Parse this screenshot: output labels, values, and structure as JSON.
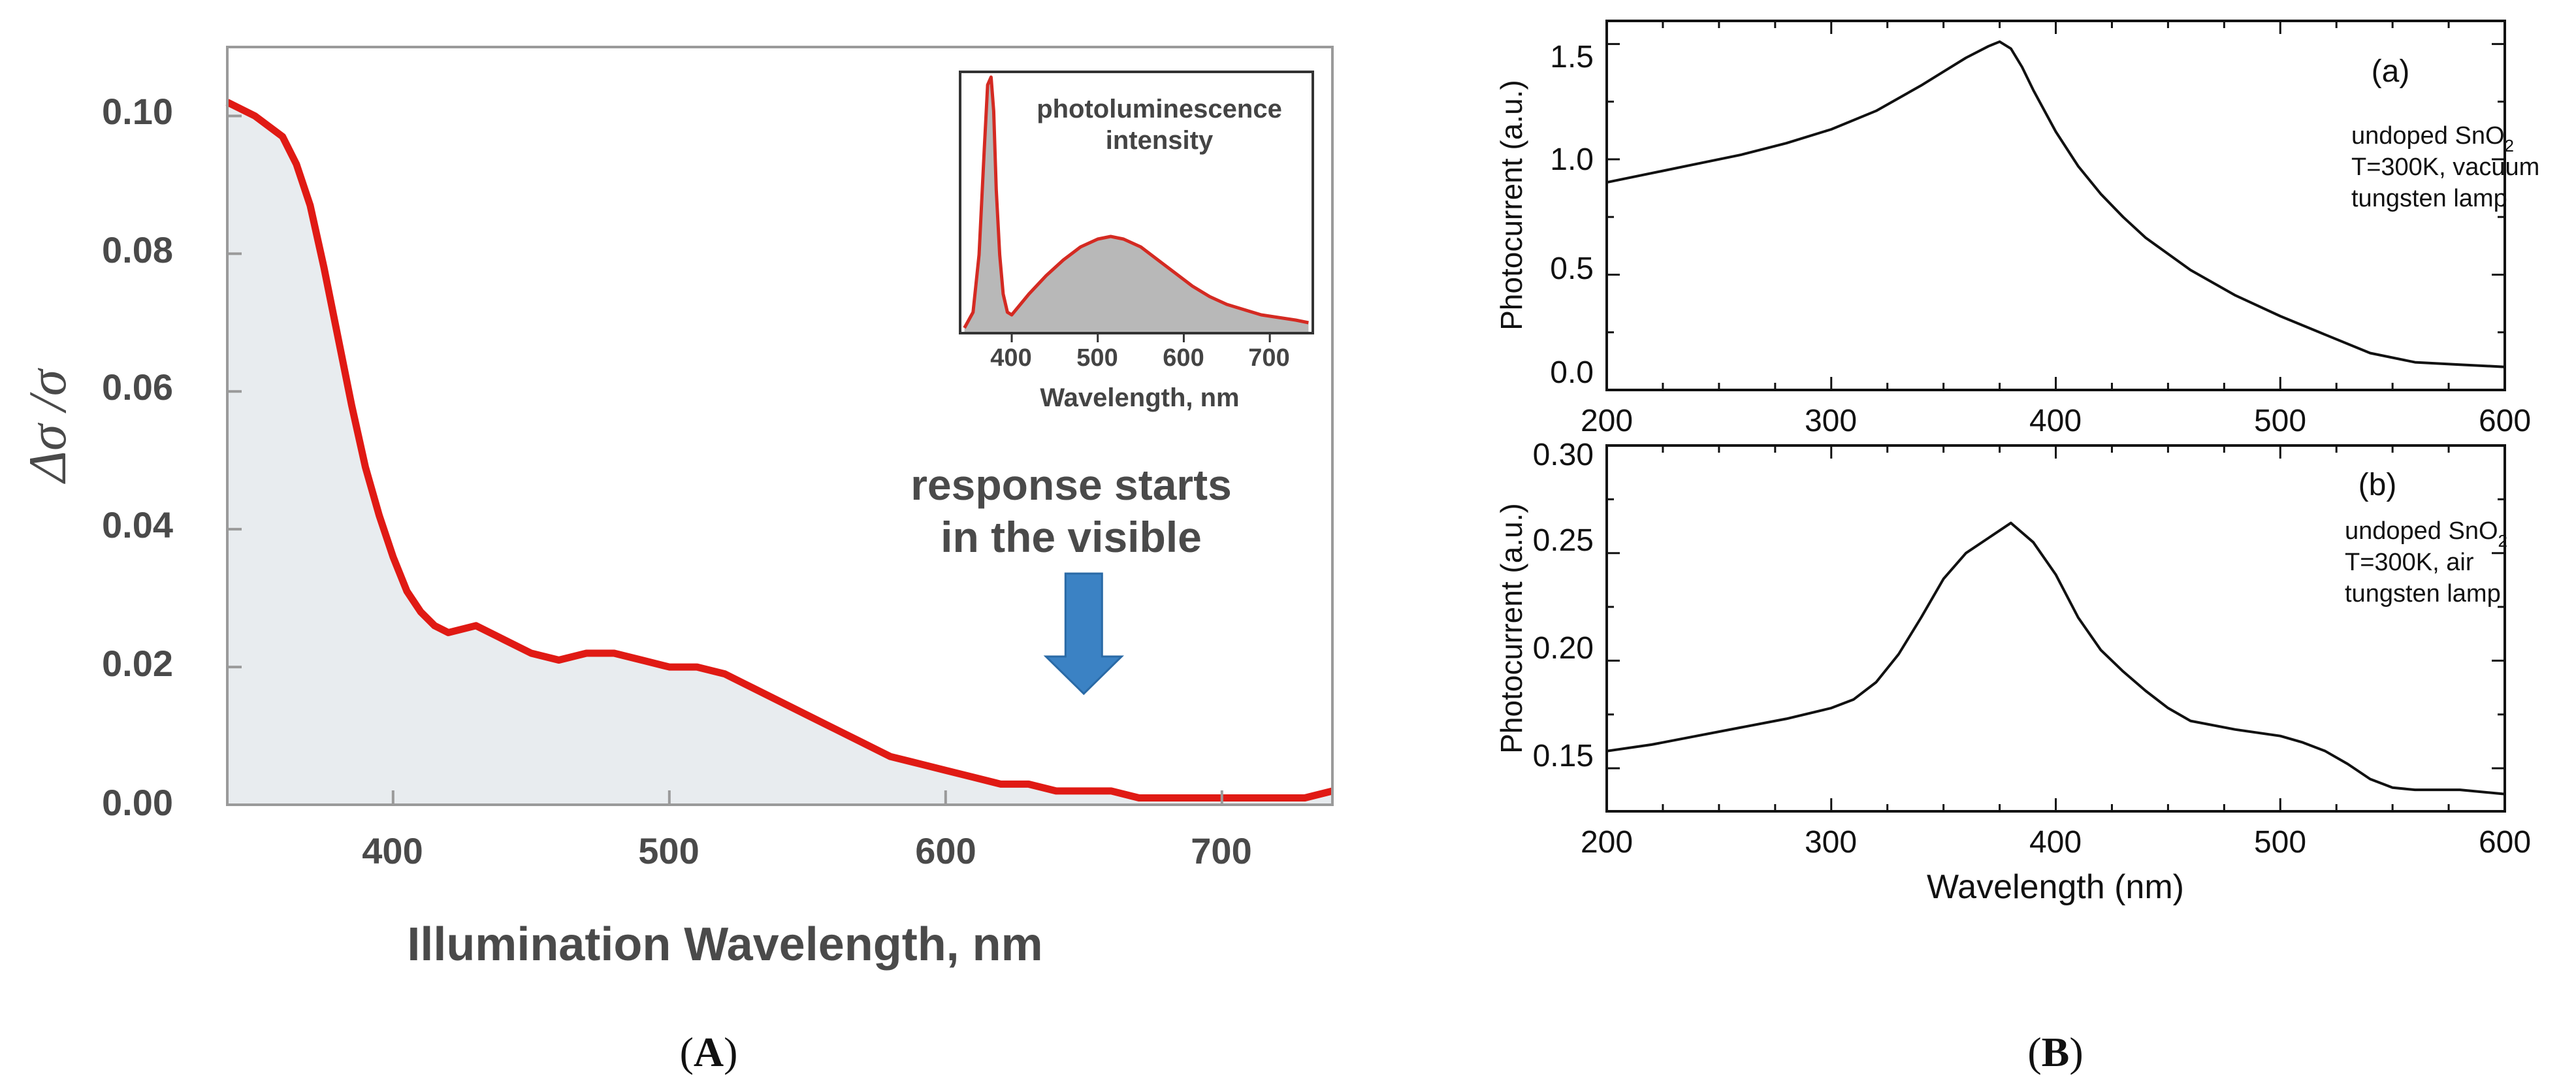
{
  "panels": [
    {
      "label_open": "(",
      "label": "A",
      "label_close": ")"
    },
    {
      "label_open": "(",
      "label": "B",
      "label_close": ")"
    }
  ],
  "chart_data": [
    {
      "id": "A-main",
      "type": "area",
      "xlabel": "Illumination Wavelength, nm",
      "ylabel": "Δσ /σ",
      "xlim": [
        340,
        740
      ],
      "ylim": [
        0,
        0.11
      ],
      "xticks": [
        400,
        500,
        600,
        700
      ],
      "xtick_labels": [
        "400",
        "500",
        "600",
        "700"
      ],
      "yticks": [
        0,
        0.02,
        0.04,
        0.06,
        0.08,
        0.1
      ],
      "ytick_labels": [
        "0.00",
        "0.02",
        "0.04",
        "0.06",
        "0.08",
        "0.10"
      ],
      "line_color": "#e01a14",
      "fill_color": "#e8ecef",
      "x": [
        340,
        350,
        360,
        365,
        370,
        375,
        380,
        385,
        390,
        395,
        400,
        405,
        410,
        415,
        420,
        430,
        440,
        450,
        460,
        470,
        480,
        490,
        500,
        510,
        520,
        530,
        540,
        550,
        560,
        570,
        580,
        590,
        600,
        610,
        620,
        630,
        640,
        650,
        660,
        670,
        680,
        690,
        700,
        710,
        720,
        730,
        740
      ],
      "y": [
        0.102,
        0.1,
        0.097,
        0.093,
        0.087,
        0.078,
        0.068,
        0.058,
        0.049,
        0.042,
        0.036,
        0.031,
        0.028,
        0.026,
        0.025,
        0.026,
        0.024,
        0.022,
        0.021,
        0.022,
        0.022,
        0.021,
        0.02,
        0.02,
        0.019,
        0.017,
        0.015,
        0.013,
        0.011,
        0.009,
        0.007,
        0.006,
        0.005,
        0.004,
        0.003,
        0.003,
        0.002,
        0.002,
        0.002,
        0.001,
        0.001,
        0.001,
        0.001,
        0.001,
        0.001,
        0.001,
        0.002
      ],
      "annotation": {
        "line1": "response starts",
        "line2": "in the visible",
        "arrow_x": 650,
        "arrow_color": "#3b82c4"
      }
    },
    {
      "id": "A-inset",
      "type": "area",
      "title_line1": "photoluminescence",
      "title_line2": "intensity",
      "xlabel": "Wavelength, nm",
      "xlim": [
        340,
        750
      ],
      "ylim": [
        0,
        1
      ],
      "xticks": [
        400,
        500,
        600,
        700
      ],
      "xtick_labels": [
        "400",
        "500",
        "600",
        "700"
      ],
      "line_color": "#d42a22",
      "fill_color": "#b8b8b8",
      "x": [
        345,
        355,
        362,
        368,
        372,
        376,
        379,
        382,
        386,
        390,
        395,
        400,
        410,
        420,
        440,
        460,
        480,
        500,
        515,
        530,
        550,
        570,
        590,
        610,
        630,
        650,
        670,
        690,
        710,
        730,
        745
      ],
      "y": [
        0.02,
        0.08,
        0.3,
        0.7,
        0.95,
        0.98,
        0.85,
        0.55,
        0.3,
        0.15,
        0.08,
        0.07,
        0.11,
        0.15,
        0.22,
        0.28,
        0.33,
        0.36,
        0.37,
        0.36,
        0.33,
        0.28,
        0.23,
        0.18,
        0.14,
        0.11,
        0.09,
        0.07,
        0.06,
        0.05,
        0.04
      ]
    },
    {
      "id": "B-a",
      "type": "line",
      "ylabel": "Photocurrent (a.u.)",
      "xlim": [
        200,
        600
      ],
      "ylim": [
        0,
        1.6
      ],
      "xticks": [
        200,
        300,
        400,
        500,
        600
      ],
      "xtick_labels": [
        "200",
        "300",
        "400",
        "500",
        "600"
      ],
      "yticks": [
        0,
        0.5,
        1.0,
        1.5
      ],
      "ytick_labels": [
        "0.0",
        "0.5",
        "1.0",
        "1.5"
      ],
      "line_color": "#111111",
      "x": [
        200,
        220,
        240,
        260,
        280,
        300,
        320,
        340,
        350,
        360,
        370,
        375,
        380,
        385,
        390,
        400,
        410,
        420,
        430,
        440,
        460,
        480,
        500,
        520,
        540,
        560,
        580,
        600
      ],
      "y": [
        0.9,
        0.94,
        0.98,
        1.02,
        1.07,
        1.13,
        1.21,
        1.32,
        1.38,
        1.44,
        1.49,
        1.51,
        1.48,
        1.4,
        1.3,
        1.12,
        0.97,
        0.85,
        0.75,
        0.66,
        0.52,
        0.41,
        0.32,
        0.24,
        0.16,
        0.12,
        0.11,
        0.1
      ],
      "tag": "(a)",
      "legend": {
        "l1": "undoped SnO",
        "l1_sub": "2",
        "l2": "T=300K, vacuum",
        "l3": "tungsten lamp"
      }
    },
    {
      "id": "B-b",
      "type": "line",
      "ylabel": "Photocurrent (a.u.)",
      "xlabel": "Wavelength (nm)",
      "xlim": [
        200,
        600
      ],
      "ylim": [
        0.13,
        0.3
      ],
      "xticks": [
        200,
        300,
        400,
        500,
        600
      ],
      "xtick_labels": [
        "200",
        "300",
        "400",
        "500",
        "600"
      ],
      "yticks": [
        0.15,
        0.2,
        0.25,
        0.3
      ],
      "ytick_labels": [
        "0.15",
        "0.20",
        "0.25",
        "0.30"
      ],
      "line_color": "#111111",
      "x": [
        200,
        220,
        240,
        260,
        280,
        300,
        310,
        320,
        330,
        340,
        350,
        360,
        370,
        380,
        390,
        400,
        410,
        420,
        430,
        440,
        450,
        460,
        480,
        500,
        510,
        520,
        530,
        540,
        550,
        560,
        580,
        600
      ],
      "y": [
        0.158,
        0.161,
        0.165,
        0.169,
        0.173,
        0.178,
        0.182,
        0.19,
        0.203,
        0.22,
        0.238,
        0.25,
        0.257,
        0.264,
        0.255,
        0.24,
        0.22,
        0.205,
        0.195,
        0.186,
        0.178,
        0.172,
        0.168,
        0.165,
        0.162,
        0.158,
        0.152,
        0.145,
        0.141,
        0.14,
        0.14,
        0.138
      ],
      "tag": "(b)",
      "legend": {
        "l1": "undoped SnO",
        "l1_sub": "2",
        "l2": "T=300K, air",
        "l3": "tungsten lamp"
      }
    }
  ]
}
